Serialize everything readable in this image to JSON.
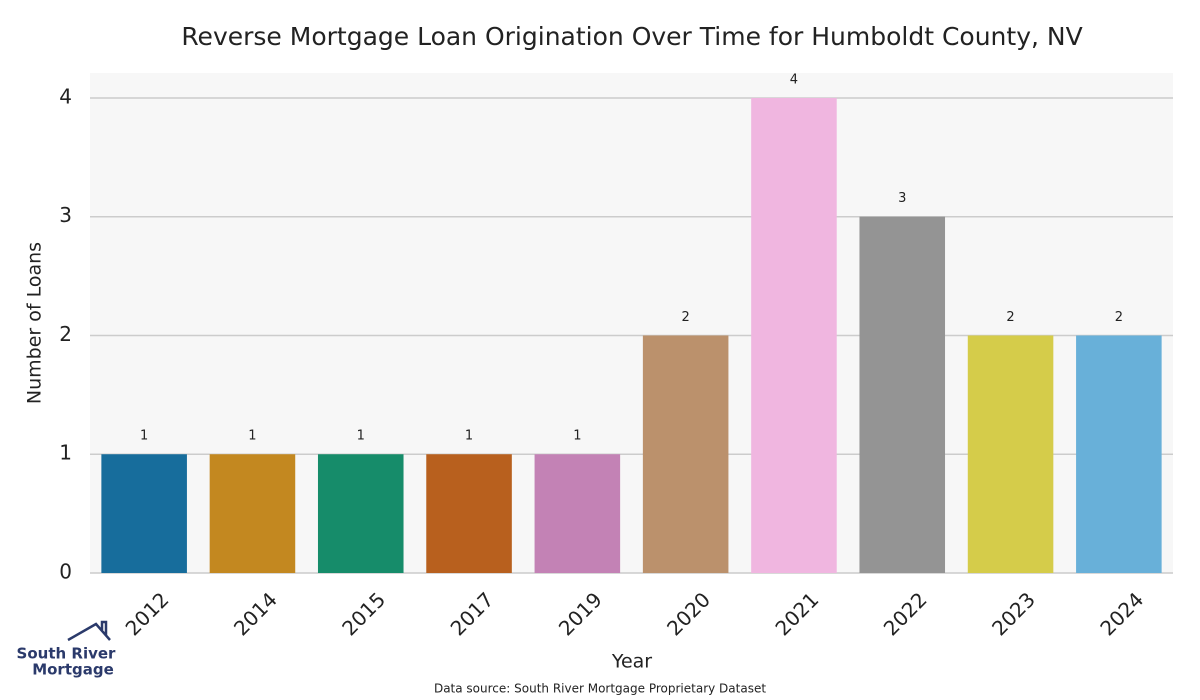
{
  "chart_data": {
    "type": "bar",
    "title": "Reverse Mortgage Loan Origination Over Time for Humboldt County, NV",
    "x_label": "Year",
    "y_label": "Number of Loans",
    "categories": [
      "2012",
      "2014",
      "2015",
      "2017",
      "2019",
      "2020",
      "2021",
      "2022",
      "2023",
      "2024"
    ],
    "values": [
      1,
      1,
      1,
      1,
      1,
      2,
      4,
      3,
      2,
      2
    ],
    "colors": [
      "#176d9c",
      "#c38820",
      "#168c6a",
      "#b8601e",
      "#c382b5",
      "#bb916c",
      "#f0b6e0",
      "#949494",
      "#d5cc4a",
      "#68b0d9"
    ],
    "ylim": [
      0,
      4.21
    ],
    "yticks": [
      0,
      1,
      2,
      3,
      4
    ],
    "grid": true,
    "source": "Data source: South River Mortgage Proprietary Dataset"
  },
  "logo": {
    "line1": "South River",
    "line2": "Mortgage"
  }
}
